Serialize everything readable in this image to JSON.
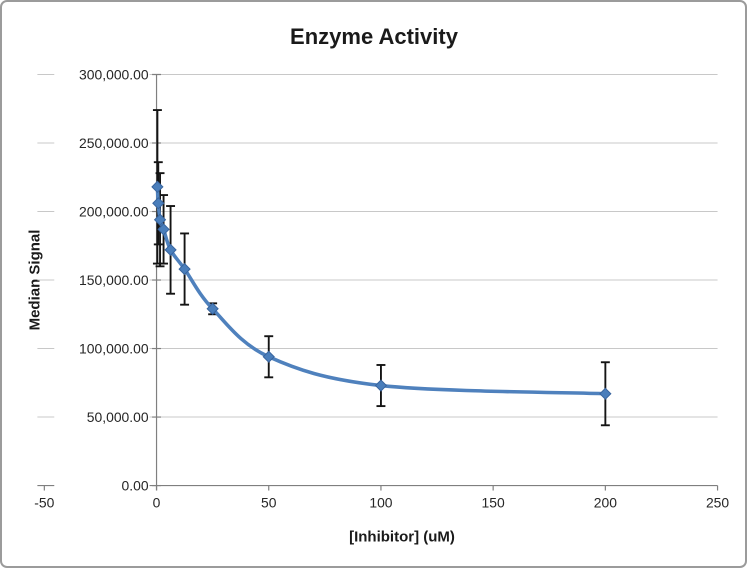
{
  "frame": {
    "background": "#ffffff",
    "border_color": "#9b9b9b"
  },
  "chart_data": {
    "type": "line",
    "title": "Enzyme Activity",
    "xlabel": "[Inhibitor] (uM)",
    "ylabel": "Median Signal",
    "xlim": [
      -50,
      250
    ],
    "ylim": [
      0,
      300000
    ],
    "grid": "horizontal-on",
    "legend": "none",
    "gridline_color": "#c8c8c8",
    "axis_line_color": "#7f7f7f",
    "error_bar_color": "#141414",
    "x_ticks": [
      {
        "value": -50,
        "label": "-50"
      },
      {
        "value": 0,
        "label": "0"
      },
      {
        "value": 50,
        "label": "50"
      },
      {
        "value": 100,
        "label": "100"
      },
      {
        "value": 150,
        "label": "150"
      },
      {
        "value": 200,
        "label": "200"
      },
      {
        "value": 250,
        "label": "250"
      }
    ],
    "y_ticks": [
      {
        "value": 0,
        "label": "0.00"
      },
      {
        "value": 50000,
        "label": "50,000.00"
      },
      {
        "value": 100000,
        "label": "100,000.00"
      },
      {
        "value": 150000,
        "label": "150,000.00"
      },
      {
        "value": 200000,
        "label": "200,000.00"
      },
      {
        "value": 250000,
        "label": "250,000.00"
      },
      {
        "value": 300000,
        "label": "300,000.00"
      }
    ],
    "series": [
      {
        "name": "Median Signal",
        "color": "#4F81BD",
        "marker": "diamond",
        "marker_color": "#4a7ebb",
        "marker_edge_color": "#38649e",
        "smooth": true,
        "points": [
          {
            "x": 0.39,
            "y": 218000,
            "error": 56000
          },
          {
            "x": 0.78,
            "y": 206000,
            "error": 30000
          },
          {
            "x": 1.56,
            "y": 194000,
            "error": 34000
          },
          {
            "x": 3.13,
            "y": 187000,
            "error": 25000
          },
          {
            "x": 6.25,
            "y": 172000,
            "error": 32000
          },
          {
            "x": 12.5,
            "y": 158000,
            "error": 26000
          },
          {
            "x": 25,
            "y": 129000,
            "error": 4000
          },
          {
            "x": 50,
            "y": 94000,
            "error": 15000
          },
          {
            "x": 100,
            "y": 73000,
            "error": 15000
          },
          {
            "x": 200,
            "y": 67000,
            "error": 23000
          }
        ]
      }
    ]
  }
}
